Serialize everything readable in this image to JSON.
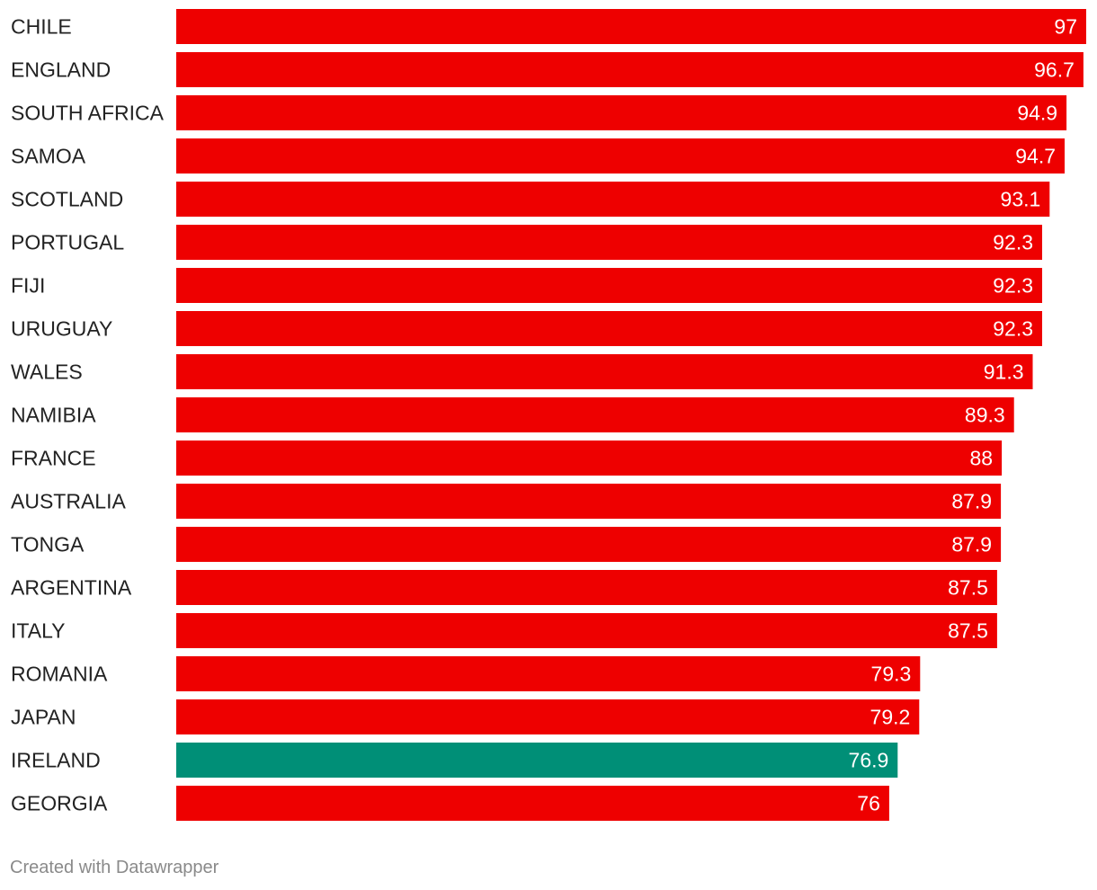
{
  "chart_data": {
    "type": "bar",
    "orientation": "horizontal",
    "categories": [
      "CHILE",
      "ENGLAND",
      "SOUTH AFRICA",
      "SAMOA",
      "SCOTLAND",
      "PORTUGAL",
      "FIJI",
      "URUGUAY",
      "WALES",
      "NAMIBIA",
      "FRANCE",
      "AUSTRALIA",
      "TONGA",
      "ARGENTINA",
      "ITALY",
      "ROMANIA",
      "JAPAN",
      "IRELAND",
      "GEORGIA"
    ],
    "values": [
      97,
      96.7,
      94.9,
      94.7,
      93.1,
      92.3,
      92.3,
      92.3,
      91.3,
      89.3,
      88,
      87.9,
      87.9,
      87.5,
      87.5,
      79.3,
      79.2,
      76.9,
      76
    ],
    "value_labels": [
      "97",
      "96.7",
      "94.9",
      "94.7",
      "93.1",
      "92.3",
      "92.3",
      "92.3",
      "91.3",
      "89.3",
      "88",
      "87.9",
      "87.9",
      "87.5",
      "87.5",
      "79.3",
      "79.2",
      "76.9",
      "76"
    ],
    "highlight_category": "IRELAND",
    "colors": {
      "default_bar": "#ee0000",
      "highlight_bar": "#008f77",
      "value_label": "#ffffff",
      "category_label": "#222222"
    },
    "xlim": [
      0,
      97
    ],
    "grid": false,
    "legend": "none"
  },
  "footer": {
    "credit": "Created with Datawrapper"
  }
}
